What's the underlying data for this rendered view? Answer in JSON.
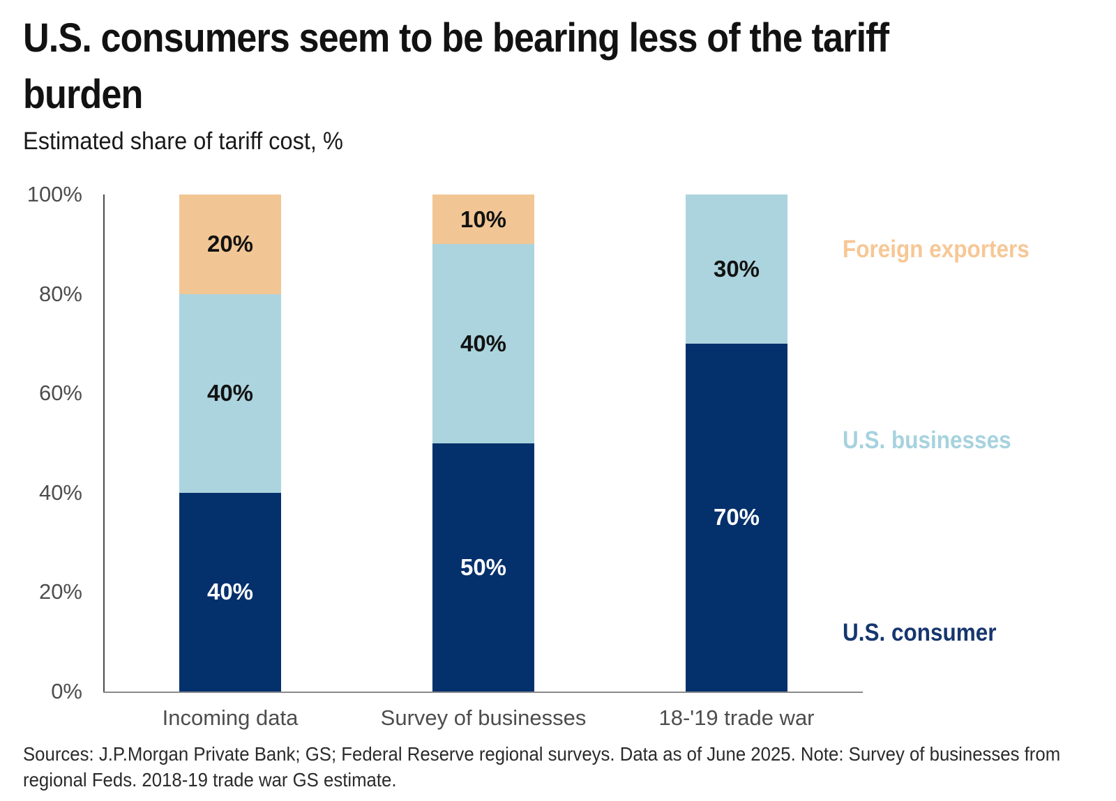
{
  "header": {
    "title_line1": "U.S. consumers seem to be bearing less of the tariff",
    "title_line2": "burden",
    "subtitle": "Estimated share of tariff cost, %"
  },
  "chart_data": {
    "type": "bar",
    "stacked": true,
    "title": "U.S. consumers seem to be bearing less of the tariff burden",
    "subtitle": "Estimated share of tariff cost, %",
    "categories": [
      "Incoming data",
      "Survey of businesses",
      "18-'19 trade war"
    ],
    "series": [
      {
        "name": "U.S. consumer",
        "color": "#04306C",
        "label_color": "#FFFFFF",
        "values": [
          40,
          50,
          70
        ]
      },
      {
        "name": "U.S. businesses",
        "color": "#ABD4DE",
        "label_color": "#121212",
        "values": [
          40,
          40,
          30
        ]
      },
      {
        "name": "Foreign exporters",
        "color": "#F2C694",
        "label_color": "#121212",
        "values": [
          20,
          10,
          0
        ]
      }
    ],
    "ylim": [
      0,
      100
    ],
    "yticks": [
      {
        "value": 0,
        "label": "0%"
      },
      {
        "value": 20,
        "label": "20%"
      },
      {
        "value": 40,
        "label": "40%"
      },
      {
        "value": 60,
        "label": "60%"
      },
      {
        "value": 80,
        "label": "80%"
      },
      {
        "value": 100,
        "label": "100%"
      }
    ],
    "grid": false,
    "legend_position": "right"
  },
  "legend": [
    {
      "label": "Foreign exporters",
      "color": "#F6C795"
    },
    {
      "label": "U.S. businesses",
      "color": "#A6D2DE"
    },
    {
      "label": "U.S. consumer",
      "color": "#16366E"
    }
  ],
  "source": {
    "line1": "Sources: J.P.Morgan Private Bank; GS; Federal Reserve regional surveys. Data as of June 2025. Note: Survey of businesses from",
    "line2": "regional Feds. 2018-19 trade war GS estimate."
  }
}
